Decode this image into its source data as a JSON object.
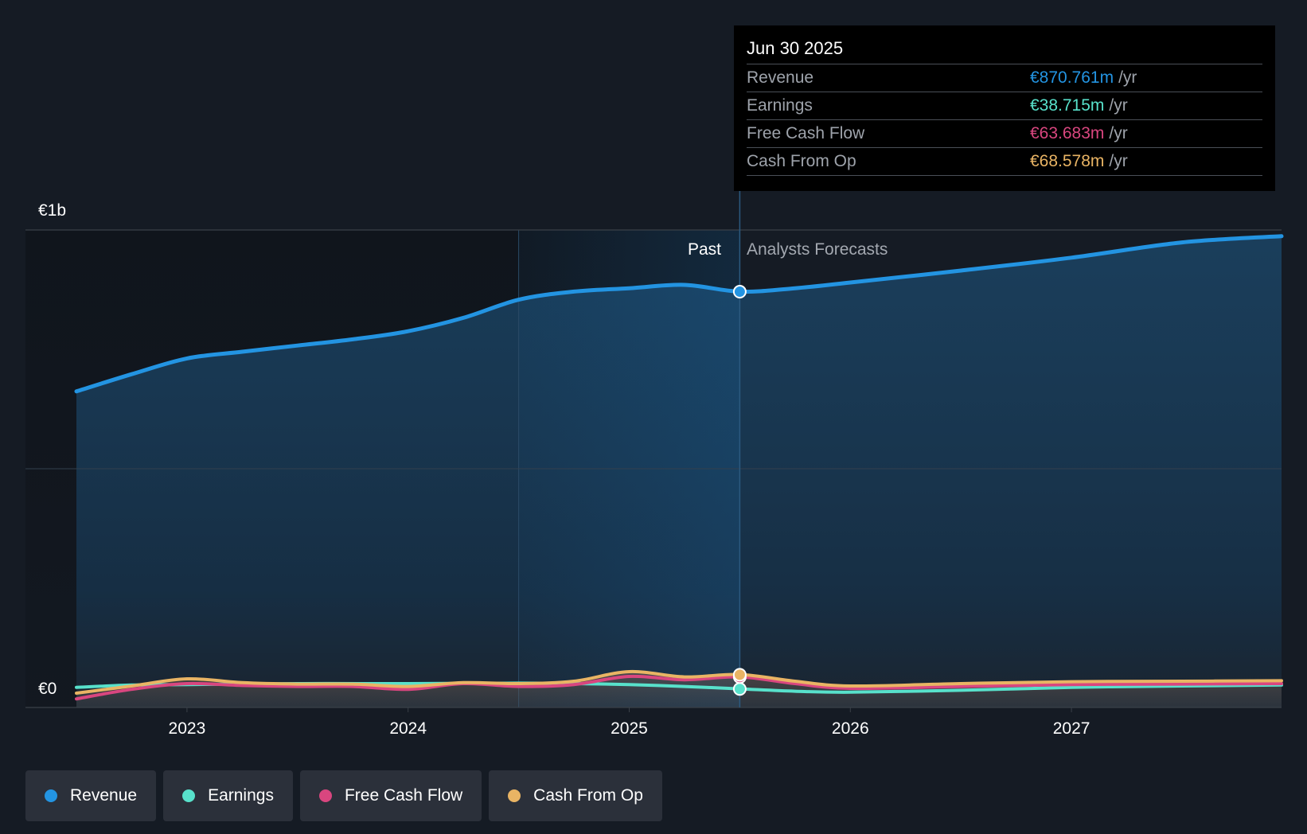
{
  "colors": {
    "revenue": "#2394e2",
    "earnings": "#58e1cb",
    "free_cash_flow": "#d9467f",
    "cash_from_op": "#e9b464",
    "background": "#151b24"
  },
  "tooltip": {
    "date": "Jun 30 2025",
    "rows": [
      {
        "label": "Revenue",
        "value": "€870.761m",
        "unit": "/yr",
        "color": "#2394e2"
      },
      {
        "label": "Earnings",
        "value": "€38.715m",
        "unit": "/yr",
        "color": "#58e1cb"
      },
      {
        "label": "Free Cash Flow",
        "value": "€63.683m",
        "unit": "/yr",
        "color": "#d9467f"
      },
      {
        "label": "Cash From Op",
        "value": "€68.578m",
        "unit": "/yr",
        "color": "#e9b464"
      }
    ]
  },
  "legend": [
    {
      "label": "Revenue",
      "color": "#2394e2"
    },
    {
      "label": "Earnings",
      "color": "#58e1cb"
    },
    {
      "label": "Free Cash Flow",
      "color": "#d9467f"
    },
    {
      "label": "Cash From Op",
      "color": "#e9b464"
    }
  ],
  "chart_data": {
    "type": "area",
    "title": "",
    "xlabel": "",
    "ylabel": "",
    "y_unit": "€m",
    "y_tick_labels": [
      {
        "value": 1000,
        "label": "€1b"
      },
      {
        "value": 0,
        "label": "€0"
      }
    ],
    "ylim": [
      0,
      1000
    ],
    "xlim": [
      2022.5,
      2027.95
    ],
    "x_ticks": [
      2023,
      2024,
      2025,
      2026,
      2027
    ],
    "x_tick_labels": [
      "2023",
      "2024",
      "2025",
      "2026",
      "2027"
    ],
    "regions": {
      "past_label": "Past",
      "forecast_label": "Analysts Forecasts",
      "highlight_start": 2024.5,
      "divider": 2025.5
    },
    "grid": true,
    "series": [
      {
        "name": "Revenue",
        "key": "revenue",
        "points": [
          [
            2022.5,
            662
          ],
          [
            2022.75,
            698
          ],
          [
            2023.0,
            731
          ],
          [
            2023.25,
            745
          ],
          [
            2023.5,
            758
          ],
          [
            2023.75,
            771
          ],
          [
            2024.0,
            788
          ],
          [
            2024.25,
            816
          ],
          [
            2024.5,
            854
          ],
          [
            2024.75,
            871
          ],
          [
            2025.0,
            878
          ],
          [
            2025.25,
            885
          ],
          [
            2025.5,
            871
          ],
          [
            2025.75,
            878
          ],
          [
            2026.0,
            890
          ],
          [
            2026.5,
            915
          ],
          [
            2027.0,
            942
          ],
          [
            2027.5,
            974
          ],
          [
            2027.95,
            987
          ]
        ]
      },
      {
        "name": "Earnings",
        "key": "earnings",
        "points": [
          [
            2022.5,
            42
          ],
          [
            2022.75,
            47
          ],
          [
            2023.0,
            48
          ],
          [
            2023.5,
            50
          ],
          [
            2024.0,
            50
          ],
          [
            2024.5,
            51
          ],
          [
            2024.75,
            50
          ],
          [
            2025.0,
            48
          ],
          [
            2025.25,
            44
          ],
          [
            2025.5,
            39
          ],
          [
            2025.75,
            34
          ],
          [
            2026.0,
            32
          ],
          [
            2026.5,
            36
          ],
          [
            2027.0,
            42
          ],
          [
            2027.5,
            45
          ],
          [
            2027.95,
            47
          ]
        ]
      },
      {
        "name": "Free Cash Flow",
        "key": "free_cash_flow",
        "points": [
          [
            2022.5,
            18
          ],
          [
            2022.75,
            38
          ],
          [
            2023.0,
            50
          ],
          [
            2023.25,
            46
          ],
          [
            2023.5,
            44
          ],
          [
            2023.75,
            44
          ],
          [
            2024.0,
            38
          ],
          [
            2024.25,
            50
          ],
          [
            2024.5,
            44
          ],
          [
            2024.75,
            48
          ],
          [
            2025.0,
            65
          ],
          [
            2025.25,
            58
          ],
          [
            2025.5,
            64
          ],
          [
            2025.75,
            50
          ],
          [
            2026.0,
            40
          ],
          [
            2026.5,
            44
          ],
          [
            2027.0,
            48
          ],
          [
            2027.5,
            49
          ],
          [
            2027.95,
            50
          ]
        ]
      },
      {
        "name": "Cash From Op",
        "key": "cash_from_op",
        "points": [
          [
            2022.5,
            30
          ],
          [
            2022.75,
            45
          ],
          [
            2023.0,
            60
          ],
          [
            2023.25,
            52
          ],
          [
            2023.5,
            49
          ],
          [
            2023.75,
            49
          ],
          [
            2024.0,
            44
          ],
          [
            2024.25,
            52
          ],
          [
            2024.5,
            50
          ],
          [
            2024.75,
            55
          ],
          [
            2025.0,
            75
          ],
          [
            2025.25,
            64
          ],
          [
            2025.5,
            69
          ],
          [
            2025.75,
            55
          ],
          [
            2026.0,
            45
          ],
          [
            2026.5,
            50
          ],
          [
            2027.0,
            54
          ],
          [
            2027.5,
            55
          ],
          [
            2027.95,
            56
          ]
        ]
      }
    ],
    "highlight_point": {
      "x": 2025.5,
      "revenue": 870.761,
      "earnings": 38.715,
      "free_cash_flow": 63.683,
      "cash_from_op": 68.578
    }
  }
}
